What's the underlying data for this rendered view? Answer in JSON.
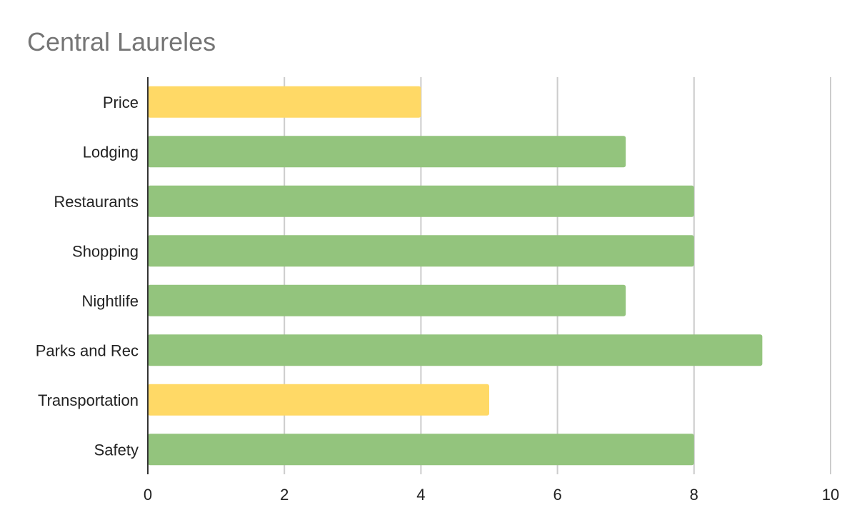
{
  "chart_data": {
    "type": "bar",
    "orientation": "horizontal",
    "title": "Central Laureles",
    "xlabel": "",
    "ylabel": "",
    "xlim": [
      0,
      10
    ],
    "x_ticks": [
      "0",
      "2",
      "4",
      "6",
      "8",
      "10"
    ],
    "grid": true,
    "categories": [
      "Price",
      "Lodging",
      "Restaurants",
      "Shopping",
      "Nightlife",
      "Parks and Rec",
      "Transportation",
      "Safety"
    ],
    "values": [
      4,
      7,
      8,
      8,
      7,
      9,
      5,
      8
    ],
    "bar_colors": [
      "#ffd966",
      "#93c47d",
      "#93c47d",
      "#93c47d",
      "#93c47d",
      "#93c47d",
      "#ffd966",
      "#93c47d"
    ]
  }
}
